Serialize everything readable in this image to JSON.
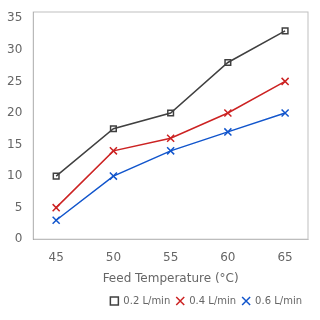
{
  "chart_data": {
    "type": "line",
    "x": [
      45,
      50,
      55,
      60,
      65
    ],
    "series": [
      {
        "name": "0.2 L/min",
        "color": "#404040",
        "marker": "square",
        "values": [
          10,
          17.5,
          20,
          28,
          33
        ]
      },
      {
        "name": "0.4 L/min",
        "color": "#cc2222",
        "marker": "x",
        "values": [
          5,
          14,
          16,
          20,
          25
        ]
      },
      {
        "name": "0.6 L/min",
        "color": "#1155cc",
        "marker": "x",
        "values": [
          3,
          10,
          14,
          17,
          20
        ]
      }
    ],
    "xlabel": "Feed Temperature (°C)",
    "xlim": [
      43,
      67
    ],
    "ylim": [
      0,
      36
    ],
    "xticks": [
      45,
      50,
      55,
      60,
      65
    ],
    "yticks": [
      0,
      5,
      10,
      15,
      20,
      25,
      30,
      35
    ],
    "grid": false,
    "legend": "lower right"
  }
}
